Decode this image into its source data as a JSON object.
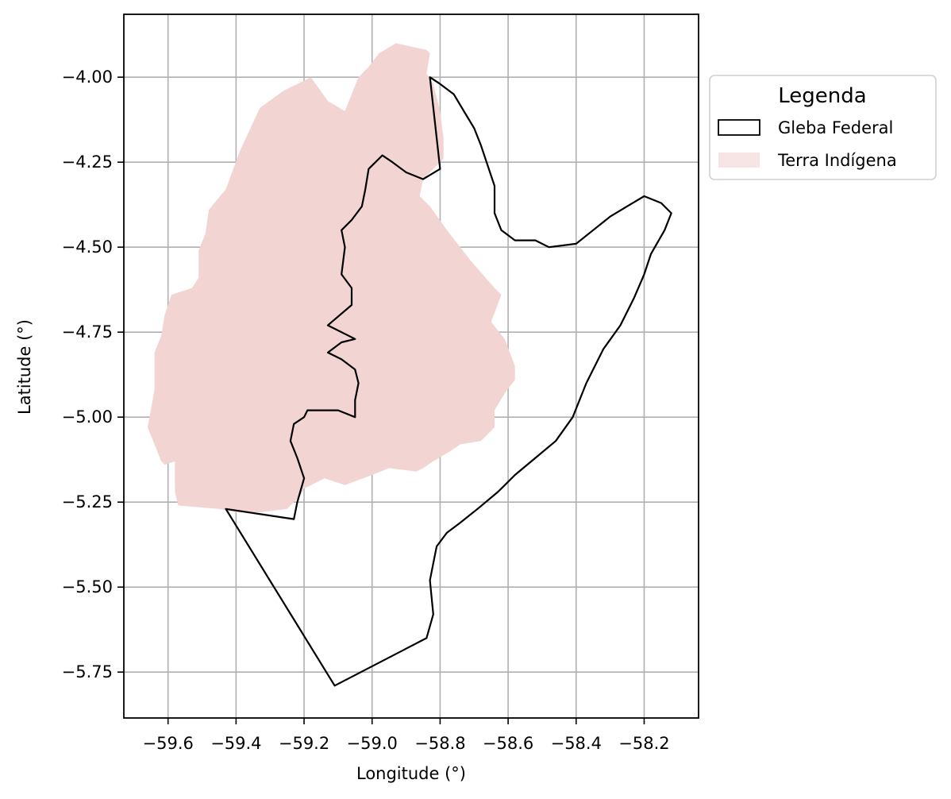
{
  "chart_data": {
    "type": "map",
    "xlabel": "Longitude (°)",
    "ylabel": "Latitude (°)",
    "xlim": [
      -59.73,
      -58.04
    ],
    "ylim": [
      -5.885,
      -3.815
    ],
    "grid": true,
    "x_ticks": [
      -59.6,
      -59.4,
      -59.2,
      -59.0,
      -58.8,
      -58.6,
      -58.4,
      -58.2
    ],
    "x_tick_labels": [
      "−59.6",
      "−59.4",
      "−59.2",
      "−59.0",
      "−58.8",
      "−58.6",
      "−58.4",
      "−58.2"
    ],
    "y_ticks": [
      -4.0,
      -4.25,
      -4.5,
      -4.75,
      -5.0,
      -5.25,
      -5.5,
      -5.75
    ],
    "y_tick_labels": [
      "−4.00",
      "−4.25",
      "−4.50",
      "−4.75",
      "−5.00",
      "−5.25",
      "−5.50",
      "−5.75"
    ],
    "legend": {
      "title": "Legenda",
      "placement": "outside-upper-right",
      "entries": [
        {
          "label": "Gleba Federal",
          "style": "outline",
          "edge_color": "#000000"
        },
        {
          "label": "Terra Indígena",
          "style": "fill",
          "fill_color": "#f2d4d3"
        }
      ]
    },
    "layers": [
      {
        "name": "Terra Indígena",
        "fill_color": "#f2d4d3",
        "polygon": [
          [
            -58.93,
            -3.9
          ],
          [
            -58.84,
            -3.92
          ],
          [
            -58.83,
            -3.93
          ],
          [
            -58.84,
            -3.99
          ],
          [
            -58.82,
            -4.02
          ],
          [
            -58.8,
            -4.1
          ],
          [
            -58.79,
            -4.18
          ],
          [
            -58.79,
            -4.24
          ],
          [
            -58.82,
            -4.27
          ],
          [
            -58.85,
            -4.3
          ],
          [
            -58.86,
            -4.35
          ],
          [
            -58.83,
            -4.38
          ],
          [
            -58.78,
            -4.45
          ],
          [
            -58.71,
            -4.54
          ],
          [
            -58.64,
            -4.62
          ],
          [
            -58.62,
            -4.64
          ],
          [
            -58.65,
            -4.72
          ],
          [
            -58.61,
            -4.77
          ],
          [
            -58.58,
            -4.85
          ],
          [
            -58.58,
            -4.89
          ],
          [
            -58.61,
            -4.93
          ],
          [
            -58.64,
            -4.98
          ],
          [
            -58.64,
            -5.03
          ],
          [
            -58.68,
            -5.07
          ],
          [
            -58.74,
            -5.08
          ],
          [
            -58.77,
            -5.1
          ],
          [
            -58.82,
            -5.13
          ],
          [
            -58.85,
            -5.15
          ],
          [
            -58.87,
            -5.16
          ],
          [
            -58.95,
            -5.15
          ],
          [
            -59.0,
            -5.17
          ],
          [
            -59.08,
            -5.2
          ],
          [
            -59.14,
            -5.18
          ],
          [
            -59.2,
            -5.21
          ],
          [
            -59.21,
            -5.23
          ],
          [
            -59.25,
            -5.27
          ],
          [
            -59.33,
            -5.28
          ],
          [
            -59.4,
            -5.28
          ],
          [
            -59.45,
            -5.27
          ],
          [
            -59.57,
            -5.26
          ],
          [
            -59.58,
            -5.22
          ],
          [
            -59.58,
            -5.13
          ],
          [
            -59.61,
            -5.14
          ],
          [
            -59.62,
            -5.13
          ],
          [
            -59.66,
            -5.03
          ],
          [
            -59.64,
            -4.92
          ],
          [
            -59.64,
            -4.81
          ],
          [
            -59.62,
            -4.76
          ],
          [
            -59.61,
            -4.7
          ],
          [
            -59.59,
            -4.64
          ],
          [
            -59.53,
            -4.62
          ],
          [
            -59.51,
            -4.59
          ],
          [
            -59.51,
            -4.51
          ],
          [
            -59.49,
            -4.46
          ],
          [
            -59.48,
            -4.39
          ],
          [
            -59.43,
            -4.33
          ],
          [
            -59.39,
            -4.22
          ],
          [
            -59.33,
            -4.09
          ],
          [
            -59.26,
            -4.04
          ],
          [
            -59.18,
            -4.0
          ],
          [
            -59.13,
            -4.07
          ],
          [
            -59.08,
            -4.1
          ],
          [
            -59.04,
            -4.0
          ],
          [
            -59.01,
            -3.97
          ],
          [
            -58.98,
            -3.93
          ],
          [
            -58.93,
            -3.9
          ]
        ]
      },
      {
        "name": "Gleba Federal",
        "edge_color": "#000000",
        "polygon": [
          [
            -58.83,
            -4.0
          ],
          [
            -58.8,
            -4.02
          ],
          [
            -58.76,
            -4.05
          ],
          [
            -58.73,
            -4.1
          ],
          [
            -58.7,
            -4.15
          ],
          [
            -58.68,
            -4.2
          ],
          [
            -58.66,
            -4.26
          ],
          [
            -58.64,
            -4.32
          ],
          [
            -58.64,
            -4.4
          ],
          [
            -58.62,
            -4.45
          ],
          [
            -58.58,
            -4.48
          ],
          [
            -58.52,
            -4.48
          ],
          [
            -58.48,
            -4.5
          ],
          [
            -58.4,
            -4.49
          ],
          [
            -58.35,
            -4.45
          ],
          [
            -58.3,
            -4.41
          ],
          [
            -58.25,
            -4.38
          ],
          [
            -58.2,
            -4.35
          ],
          [
            -58.15,
            -4.37
          ],
          [
            -58.12,
            -4.4
          ],
          [
            -58.14,
            -4.45
          ],
          [
            -58.18,
            -4.52
          ],
          [
            -58.2,
            -4.58
          ],
          [
            -58.23,
            -4.65
          ],
          [
            -58.27,
            -4.73
          ],
          [
            -58.32,
            -4.8
          ],
          [
            -58.37,
            -4.9
          ],
          [
            -58.41,
            -5.0
          ],
          [
            -58.46,
            -5.07
          ],
          [
            -58.52,
            -5.12
          ],
          [
            -58.58,
            -5.17
          ],
          [
            -58.63,
            -5.22
          ],
          [
            -58.69,
            -5.27
          ],
          [
            -58.74,
            -5.31
          ],
          [
            -58.78,
            -5.34
          ],
          [
            -58.81,
            -5.38
          ],
          [
            -58.82,
            -5.43
          ],
          [
            -58.83,
            -5.48
          ],
          [
            -58.82,
            -5.58
          ],
          [
            -58.84,
            -5.65
          ],
          [
            -59.11,
            -5.79
          ],
          [
            -59.43,
            -5.27
          ],
          [
            -59.23,
            -5.3
          ],
          [
            -59.22,
            -5.25
          ],
          [
            -59.2,
            -5.18
          ],
          [
            -59.22,
            -5.12
          ],
          [
            -59.24,
            -5.07
          ],
          [
            -59.23,
            -5.02
          ],
          [
            -59.2,
            -5.0
          ],
          [
            -59.19,
            -4.98
          ],
          [
            -59.1,
            -4.98
          ],
          [
            -59.05,
            -5.0
          ],
          [
            -59.05,
            -4.95
          ],
          [
            -59.04,
            -4.9
          ],
          [
            -59.05,
            -4.86
          ],
          [
            -59.09,
            -4.83
          ],
          [
            -59.13,
            -4.81
          ],
          [
            -59.09,
            -4.78
          ],
          [
            -59.05,
            -4.77
          ],
          [
            -59.13,
            -4.73
          ],
          [
            -59.06,
            -4.67
          ],
          [
            -59.06,
            -4.62
          ],
          [
            -59.09,
            -4.58
          ],
          [
            -59.08,
            -4.5
          ],
          [
            -59.09,
            -4.45
          ],
          [
            -59.06,
            -4.42
          ],
          [
            -59.03,
            -4.38
          ],
          [
            -59.02,
            -4.33
          ],
          [
            -59.01,
            -4.27
          ],
          [
            -58.99,
            -4.25
          ],
          [
            -58.97,
            -4.23
          ],
          [
            -58.94,
            -4.25
          ],
          [
            -58.9,
            -4.28
          ],
          [
            -58.85,
            -4.3
          ],
          [
            -58.8,
            -4.27
          ],
          [
            -58.83,
            -4.0
          ]
        ]
      }
    ]
  }
}
